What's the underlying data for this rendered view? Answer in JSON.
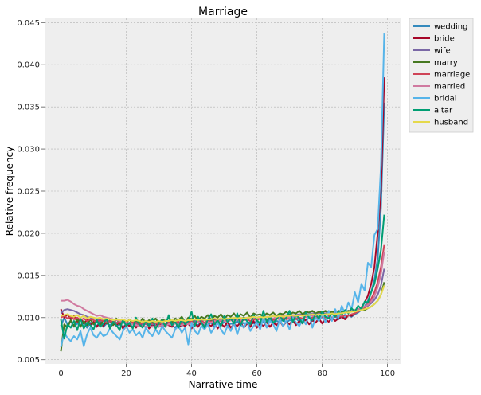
{
  "chart_data": {
    "type": "line",
    "title": "Marriage",
    "xlabel": "Narrative time",
    "ylabel": "Relative frequency",
    "xlim": [
      -5,
      104
    ],
    "ylim": [
      0.0045,
      0.0455
    ],
    "x_ticks": [
      0,
      20,
      40,
      60,
      80,
      100
    ],
    "y_ticks": [
      0.005,
      0.01,
      0.015,
      0.02,
      0.025,
      0.03,
      0.035,
      0.04,
      0.045
    ],
    "x_tick_labels": [
      "0",
      "20",
      "40",
      "60",
      "80",
      "100"
    ],
    "y_tick_labels": [
      "0.005",
      "0.010",
      "0.015",
      "0.020",
      "0.025",
      "0.030",
      "0.035",
      "0.040",
      "0.045"
    ],
    "grid": true,
    "legend_position": "outside-top-right",
    "x": [
      0,
      1,
      2,
      3,
      4,
      5,
      6,
      7,
      8,
      9,
      10,
      11,
      12,
      13,
      14,
      15,
      16,
      17,
      18,
      19,
      20,
      21,
      22,
      23,
      24,
      25,
      26,
      27,
      28,
      29,
      30,
      31,
      32,
      33,
      34,
      35,
      36,
      37,
      38,
      39,
      40,
      41,
      42,
      43,
      44,
      45,
      46,
      47,
      48,
      49,
      50,
      51,
      52,
      53,
      54,
      55,
      56,
      57,
      58,
      59,
      60,
      61,
      62,
      63,
      64,
      65,
      66,
      67,
      68,
      69,
      70,
      71,
      72,
      73,
      74,
      75,
      76,
      77,
      78,
      79,
      80,
      81,
      82,
      83,
      84,
      85,
      86,
      87,
      88,
      89,
      90,
      91,
      92,
      93,
      94,
      95,
      96,
      97,
      98,
      99
    ],
    "series": [
      {
        "name": "wedding",
        "color": "#348ABD",
        "values": [
          0.009,
          0.01,
          0.0092,
          0.0096,
          0.0089,
          0.0093,
          0.0091,
          0.0095,
          0.0088,
          0.0094,
          0.0092,
          0.009,
          0.0096,
          0.0089,
          0.0093,
          0.0091,
          0.0094,
          0.009,
          0.0092,
          0.0088,
          0.0093,
          0.0091,
          0.0089,
          0.0095,
          0.009,
          0.0092,
          0.0088,
          0.0094,
          0.0091,
          0.0093,
          0.0089,
          0.0092,
          0.009,
          0.0095,
          0.0091,
          0.0088,
          0.0093,
          0.009,
          0.0094,
          0.0092,
          0.0089,
          0.0093,
          0.0091,
          0.0095,
          0.009,
          0.0092,
          0.0094,
          0.0089,
          0.0093,
          0.0091,
          0.0095,
          0.009,
          0.0093,
          0.0092,
          0.0096,
          0.0091,
          0.0094,
          0.0092,
          0.0095,
          0.0093,
          0.0096,
          0.0092,
          0.0095,
          0.0094,
          0.0097,
          0.0093,
          0.0096,
          0.0095,
          0.0098,
          0.0094,
          0.0097,
          0.0096,
          0.0099,
          0.0095,
          0.0098,
          0.0097,
          0.01,
          0.0096,
          0.0099,
          0.0098,
          0.0101,
          0.0097,
          0.01,
          0.0099,
          0.0102,
          0.0098,
          0.0101,
          0.01,
          0.0103,
          0.0101,
          0.0104,
          0.0106,
          0.0109,
          0.0113,
          0.012,
          0.013,
          0.0145,
          0.017,
          0.023,
          0.0355
        ]
      },
      {
        "name": "bride",
        "color": "#A60628",
        "values": [
          0.011,
          0.01,
          0.0104,
          0.0098,
          0.0102,
          0.0095,
          0.0099,
          0.0093,
          0.0097,
          0.0091,
          0.0095,
          0.0089,
          0.0094,
          0.009,
          0.0096,
          0.0088,
          0.0093,
          0.0091,
          0.0095,
          0.0087,
          0.0092,
          0.009,
          0.0094,
          0.0088,
          0.0093,
          0.0089,
          0.0095,
          0.0087,
          0.0092,
          0.009,
          0.0094,
          0.0088,
          0.0093,
          0.0091,
          0.0089,
          0.0095,
          0.0088,
          0.0092,
          0.009,
          0.0094,
          0.0087,
          0.0093,
          0.0089,
          0.0095,
          0.0088,
          0.0092,
          0.009,
          0.0094,
          0.0087,
          0.0093,
          0.0089,
          0.0095,
          0.0088,
          0.0092,
          0.009,
          0.0094,
          0.0088,
          0.0093,
          0.0089,
          0.0096,
          0.0088,
          0.0093,
          0.009,
          0.0095,
          0.0089,
          0.0094,
          0.0091,
          0.0096,
          0.009,
          0.0095,
          0.0092,
          0.0097,
          0.0091,
          0.0096,
          0.0093,
          0.0098,
          0.0092,
          0.0097,
          0.0094,
          0.0099,
          0.0093,
          0.0098,
          0.0095,
          0.01,
          0.0096,
          0.0099,
          0.0101,
          0.0098,
          0.0103,
          0.0102,
          0.0105,
          0.0108,
          0.0112,
          0.0118,
          0.0126,
          0.014,
          0.016,
          0.02,
          0.025,
          0.0385
        ]
      },
      {
        "name": "wife",
        "color": "#7A68A6",
        "values": [
          0.0105,
          0.0109,
          0.011,
          0.0109,
          0.0108,
          0.0106,
          0.0104,
          0.0103,
          0.0101,
          0.01,
          0.0099,
          0.0098,
          0.0097,
          0.0096,
          0.0096,
          0.0095,
          0.0095,
          0.0094,
          0.0094,
          0.0094,
          0.0093,
          0.0093,
          0.0093,
          0.0093,
          0.0092,
          0.0093,
          0.0092,
          0.0093,
          0.0092,
          0.0093,
          0.0093,
          0.0094,
          0.0093,
          0.0094,
          0.0094,
          0.0095,
          0.0094,
          0.0095,
          0.0095,
          0.0096,
          0.0095,
          0.0096,
          0.0096,
          0.0096,
          0.0097,
          0.0096,
          0.0097,
          0.0097,
          0.0098,
          0.0097,
          0.0098,
          0.0098,
          0.0099,
          0.0098,
          0.0099,
          0.0099,
          0.01,
          0.0099,
          0.01,
          0.01,
          0.01,
          0.0101,
          0.01,
          0.0101,
          0.0101,
          0.0102,
          0.0101,
          0.0102,
          0.0102,
          0.0103,
          0.0102,
          0.0103,
          0.0103,
          0.0104,
          0.0103,
          0.0104,
          0.0104,
          0.0105,
          0.0104,
          0.0105,
          0.0105,
          0.0105,
          0.0106,
          0.0105,
          0.0106,
          0.0106,
          0.0107,
          0.0107,
          0.0108,
          0.0108,
          0.0109,
          0.011,
          0.0111,
          0.0112,
          0.0114,
          0.0117,
          0.0121,
          0.0127,
          0.0138,
          0.0158
        ]
      },
      {
        "name": "marry",
        "color": "#467821",
        "values": [
          0.006,
          0.0092,
          0.0088,
          0.0097,
          0.009,
          0.0099,
          0.0089,
          0.0096,
          0.0091,
          0.0098,
          0.0092,
          0.0096,
          0.009,
          0.0098,
          0.0093,
          0.0097,
          0.0091,
          0.0099,
          0.0092,
          0.0096,
          0.0094,
          0.0098,
          0.0092,
          0.0097,
          0.0093,
          0.0099,
          0.0094,
          0.0097,
          0.0095,
          0.0099,
          0.0093,
          0.0098,
          0.0096,
          0.01,
          0.0094,
          0.0099,
          0.0097,
          0.0101,
          0.0095,
          0.01,
          0.0098,
          0.0102,
          0.0096,
          0.0101,
          0.0099,
          0.0103,
          0.0097,
          0.0102,
          0.01,
          0.0104,
          0.0098,
          0.0103,
          0.0101,
          0.0105,
          0.0099,
          0.0104,
          0.0102,
          0.0106,
          0.01,
          0.0105,
          0.0103,
          0.0104,
          0.0101,
          0.0105,
          0.0103,
          0.0106,
          0.0102,
          0.0105,
          0.0104,
          0.0107,
          0.0103,
          0.0106,
          0.0105,
          0.0108,
          0.0104,
          0.0107,
          0.0106,
          0.0108,
          0.0105,
          0.0107,
          0.0106,
          0.0108,
          0.0105,
          0.0107,
          0.0106,
          0.0108,
          0.0107,
          0.0106,
          0.0108,
          0.0107,
          0.0109,
          0.0108,
          0.011,
          0.0109,
          0.0111,
          0.0113,
          0.0116,
          0.012,
          0.0127,
          0.0142
        ]
      },
      {
        "name": "marriage",
        "color": "#CF4457",
        "values": [
          0.01,
          0.0102,
          0.0099,
          0.0101,
          0.0098,
          0.01,
          0.0097,
          0.0099,
          0.0096,
          0.0098,
          0.0097,
          0.0095,
          0.0097,
          0.0096,
          0.0094,
          0.0096,
          0.0095,
          0.0093,
          0.0095,
          0.0094,
          0.0095,
          0.0093,
          0.0095,
          0.0094,
          0.0092,
          0.0094,
          0.0093,
          0.0095,
          0.0093,
          0.0094,
          0.0092,
          0.0094,
          0.0093,
          0.0095,
          0.0093,
          0.0094,
          0.0095,
          0.0093,
          0.0095,
          0.0094,
          0.0096,
          0.0094,
          0.0095,
          0.0096,
          0.0094,
          0.0096,
          0.0095,
          0.0097,
          0.0095,
          0.0096,
          0.0097,
          0.0095,
          0.0097,
          0.0096,
          0.0098,
          0.0096,
          0.0097,
          0.0098,
          0.0096,
          0.0098,
          0.0097,
          0.0099,
          0.0097,
          0.0098,
          0.0099,
          0.0097,
          0.0099,
          0.0098,
          0.01,
          0.0098,
          0.0099,
          0.01,
          0.0098,
          0.01,
          0.0099,
          0.0101,
          0.0099,
          0.01,
          0.0101,
          0.0099,
          0.0101,
          0.01,
          0.0102,
          0.01,
          0.0101,
          0.0102,
          0.0101,
          0.0103,
          0.0102,
          0.0104,
          0.0105,
          0.0107,
          0.0109,
          0.0112,
          0.0116,
          0.0122,
          0.013,
          0.0142,
          0.016,
          0.0186
        ]
      },
      {
        "name": "married",
        "color": "#D07AA0",
        "values": [
          0.012,
          0.012,
          0.0121,
          0.0119,
          0.0116,
          0.0114,
          0.0113,
          0.011,
          0.0108,
          0.0106,
          0.0104,
          0.0102,
          0.0103,
          0.0101,
          0.01,
          0.0099,
          0.0098,
          0.0097,
          0.0096,
          0.0095,
          0.0094,
          0.0093,
          0.0092,
          0.0091,
          0.009,
          0.009,
          0.0089,
          0.009,
          0.0089,
          0.009,
          0.009,
          0.0091,
          0.009,
          0.0092,
          0.0091,
          0.0093,
          0.0092,
          0.0091,
          0.0093,
          0.0092,
          0.0094,
          0.0093,
          0.0095,
          0.0094,
          0.0093,
          0.0095,
          0.0094,
          0.0096,
          0.0095,
          0.0097,
          0.0096,
          0.0095,
          0.0097,
          0.0096,
          0.0098,
          0.0097,
          0.0099,
          0.0098,
          0.01,
          0.0099,
          0.0098,
          0.01,
          0.0099,
          0.0101,
          0.01,
          0.0099,
          0.0101,
          0.01,
          0.0102,
          0.0101,
          0.01,
          0.0102,
          0.0101,
          0.0103,
          0.0102,
          0.0101,
          0.0103,
          0.0102,
          0.0104,
          0.0103,
          0.0104,
          0.0103,
          0.0105,
          0.0104,
          0.0105,
          0.0106,
          0.0105,
          0.0107,
          0.0106,
          0.0108,
          0.0109,
          0.011,
          0.0111,
          0.0113,
          0.0115,
          0.0119,
          0.0125,
          0.0136,
          0.0152,
          0.0178
        ]
      },
      {
        "name": "bridal",
        "color": "#56B4E9",
        "values": [
          0.0065,
          0.0082,
          0.0076,
          0.0072,
          0.0078,
          0.0074,
          0.0084,
          0.0066,
          0.008,
          0.0088,
          0.0079,
          0.0076,
          0.0083,
          0.0078,
          0.008,
          0.0087,
          0.0082,
          0.0078,
          0.0074,
          0.0084,
          0.009,
          0.0082,
          0.0086,
          0.0079,
          0.0083,
          0.0076,
          0.0088,
          0.0082,
          0.0078,
          0.0086,
          0.008,
          0.009,
          0.0084,
          0.008,
          0.0076,
          0.0086,
          0.009,
          0.0082,
          0.0088,
          0.0068,
          0.0094,
          0.0084,
          0.008,
          0.009,
          0.0086,
          0.0092,
          0.0082,
          0.0088,
          0.0094,
          0.0086,
          0.008,
          0.009,
          0.0084,
          0.0094,
          0.008,
          0.0092,
          0.0088,
          0.0096,
          0.0084,
          0.009,
          0.0094,
          0.0086,
          0.01,
          0.0088,
          0.0096,
          0.0092,
          0.0084,
          0.0098,
          0.009,
          0.0096,
          0.0086,
          0.01,
          0.0094,
          0.009,
          0.0098,
          0.0092,
          0.0104,
          0.0088,
          0.01,
          0.0096,
          0.0104,
          0.0094,
          0.0108,
          0.0096,
          0.011,
          0.01,
          0.0114,
          0.0104,
          0.0118,
          0.011,
          0.013,
          0.0118,
          0.014,
          0.0132,
          0.0165,
          0.016,
          0.0198,
          0.0205,
          0.028,
          0.0437
        ]
      },
      {
        "name": "altar",
        "color": "#009E73",
        "values": [
          0.0098,
          0.0075,
          0.0092,
          0.0088,
          0.0096,
          0.0085,
          0.0099,
          0.0087,
          0.0094,
          0.0091,
          0.0086,
          0.0097,
          0.0089,
          0.0093,
          0.0099,
          0.0087,
          0.0095,
          0.0091,
          0.0085,
          0.0098,
          0.009,
          0.0094,
          0.0087,
          0.01,
          0.0092,
          0.0088,
          0.0096,
          0.009,
          0.0099,
          0.0087,
          0.0093,
          0.0097,
          0.0089,
          0.0103,
          0.0091,
          0.0095,
          0.0088,
          0.0099,
          0.0092,
          0.0096,
          0.0107,
          0.009,
          0.0101,
          0.0094,
          0.0088,
          0.0098,
          0.0104,
          0.0092,
          0.0097,
          0.009,
          0.0102,
          0.0095,
          0.0099,
          0.0093,
          0.0105,
          0.0091,
          0.01,
          0.0096,
          0.0092,
          0.0103,
          0.0097,
          0.0093,
          0.0108,
          0.0095,
          0.0101,
          0.0094,
          0.0098,
          0.0104,
          0.0096,
          0.01,
          0.0108,
          0.0095,
          0.0103,
          0.0099,
          0.0093,
          0.0106,
          0.01,
          0.0097,
          0.0104,
          0.0099,
          0.0107,
          0.0101,
          0.0099,
          0.0105,
          0.0101,
          0.0107,
          0.0103,
          0.0109,
          0.0105,
          0.0111,
          0.0107,
          0.0114,
          0.011,
          0.0119,
          0.0118,
          0.013,
          0.014,
          0.0158,
          0.018,
          0.0222
        ]
      },
      {
        "name": "husband",
        "color": "#E5D94B",
        "values": [
          0.0102,
          0.0103,
          0.0104,
          0.0102,
          0.0101,
          0.0103,
          0.01,
          0.0102,
          0.0099,
          0.0101,
          0.01,
          0.0099,
          0.01,
          0.0098,
          0.0099,
          0.0098,
          0.0097,
          0.0098,
          0.0097,
          0.0098,
          0.0096,
          0.0097,
          0.0096,
          0.0097,
          0.0096,
          0.0095,
          0.0096,
          0.0095,
          0.0096,
          0.0095,
          0.0096,
          0.0095,
          0.0096,
          0.0096,
          0.0097,
          0.0096,
          0.0097,
          0.0097,
          0.0096,
          0.0097,
          0.0097,
          0.0098,
          0.0097,
          0.0098,
          0.0097,
          0.0098,
          0.0098,
          0.0099,
          0.0098,
          0.0099,
          0.0098,
          0.0099,
          0.0099,
          0.01,
          0.0099,
          0.01,
          0.0099,
          0.01,
          0.01,
          0.0101,
          0.01,
          0.0101,
          0.01,
          0.0101,
          0.0101,
          0.0102,
          0.0101,
          0.0102,
          0.0101,
          0.0102,
          0.0102,
          0.0103,
          0.0102,
          0.0103,
          0.0102,
          0.0103,
          0.0103,
          0.0104,
          0.0103,
          0.0104,
          0.0103,
          0.0104,
          0.0104,
          0.0105,
          0.0104,
          0.0105,
          0.0105,
          0.0106,
          0.0106,
          0.0107,
          0.0107,
          0.0108,
          0.0109,
          0.011,
          0.0111,
          0.0113,
          0.0116,
          0.012,
          0.0127,
          0.0138
        ]
      }
    ]
  }
}
